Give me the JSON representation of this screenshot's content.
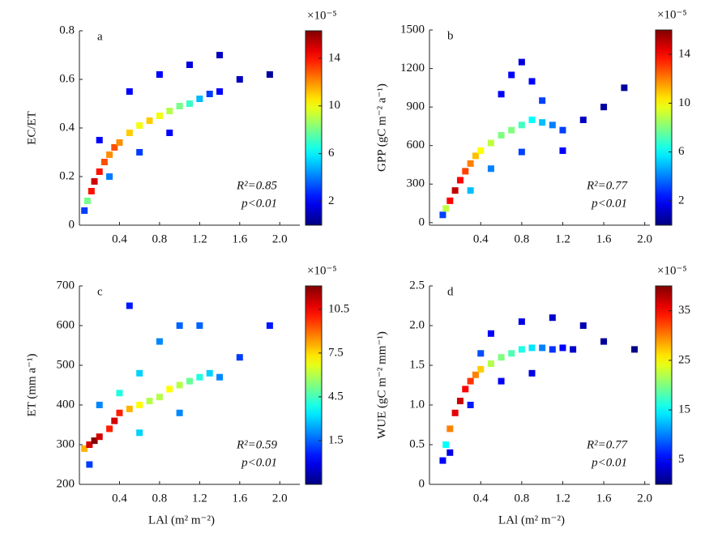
{
  "chart_data": [
    {
      "type": "scatter",
      "label": "a",
      "ylabel": "EC/ET",
      "annotation": "R²=0.85",
      "annotation2": "p<0.01",
      "colorbar_label": "×10⁻⁵",
      "xlim": [
        0,
        2.2
      ],
      "xticks": [
        0.4,
        0.8,
        1.2,
        1.6,
        {
          "value": 2.0,
          "label": "2.0"
        }
      ],
      "ylim": [
        0,
        0.8
      ],
      "yticks": [
        0,
        0.2,
        0.4,
        0.6,
        0.8
      ],
      "clim": [
        0,
        16.3
      ],
      "cticks": [
        2,
        6,
        10,
        14
      ],
      "x": [
        0.05,
        0.08,
        0.12,
        0.15,
        0.2,
        0.25,
        0.3,
        0.35,
        0.4,
        0.5,
        0.6,
        0.7,
        0.8,
        0.9,
        1.0,
        1.1,
        1.2,
        1.3,
        1.4,
        0.3,
        0.6,
        0.9,
        0.5,
        0.8,
        1.1,
        1.4,
        1.6,
        0.2,
        1.9
      ],
      "values": [
        0.06,
        0.1,
        0.14,
        0.18,
        0.22,
        0.26,
        0.29,
        0.32,
        0.34,
        0.38,
        0.41,
        0.43,
        0.45,
        0.47,
        0.49,
        0.5,
        0.52,
        0.54,
        0.55,
        0.2,
        0.3,
        0.38,
        0.55,
        0.62,
        0.66,
        0.7,
        0.6,
        0.35,
        0.62
      ],
      "density": [
        3,
        8,
        14,
        15,
        14,
        13,
        12,
        13,
        12,
        11,
        10,
        11,
        10,
        9,
        8,
        7,
        5,
        3,
        2,
        4,
        3,
        2,
        2,
        2,
        1.5,
        1,
        1,
        2,
        0.5
      ]
    },
    {
      "type": "scatter",
      "label": "b",
      "ylabel": "GPP (gC m⁻² a⁻¹)",
      "annotation": "R²=0.77",
      "annotation2": "p<0.01",
      "colorbar_label": "×10⁻⁵",
      "xlim": [
        -0.1,
        2.05
      ],
      "xticks": [
        0.4,
        0.8,
        1.2,
        1.6,
        {
          "value": 2.0,
          "label": "2.0"
        }
      ],
      "ylim": [
        -20,
        1500
      ],
      "yticks": [
        0,
        300,
        600,
        900,
        1200,
        1500
      ],
      "clim": [
        0,
        16
      ],
      "cticks": [
        2,
        6,
        10,
        14
      ],
      "x": [
        0.03,
        0.06,
        0.1,
        0.15,
        0.2,
        0.25,
        0.3,
        0.35,
        0.4,
        0.5,
        0.6,
        0.7,
        0.8,
        0.9,
        1.0,
        1.1,
        1.2,
        0.6,
        0.7,
        0.8,
        0.9,
        1.0,
        0.5,
        0.8,
        1.2,
        1.4,
        1.6,
        1.8,
        0.3
      ],
      "values": [
        60,
        110,
        170,
        250,
        330,
        400,
        460,
        520,
        560,
        620,
        680,
        720,
        760,
        800,
        780,
        760,
        720,
        1000,
        1150,
        1250,
        1100,
        950,
        420,
        550,
        560,
        800,
        900,
        1050,
        250
      ],
      "density": [
        3,
        9,
        14,
        15,
        14,
        13,
        12,
        11,
        10,
        9,
        8,
        8,
        7,
        6,
        5,
        4,
        3,
        2,
        2,
        1.5,
        2,
        3,
        4,
        3,
        2,
        1,
        0.5,
        0.5,
        5
      ]
    },
    {
      "type": "scatter",
      "label": "c",
      "ylabel": "ET (mm a⁻¹)",
      "xlabel": "LAl (m² m⁻²)",
      "annotation": "R²=0.59",
      "annotation2": "p<0.01",
      "colorbar_label": "×10⁻⁵",
      "xlim": [
        0,
        2.2
      ],
      "xticks": [
        0.4,
        0.8,
        1.2,
        1.6,
        {
          "value": 2.0,
          "label": "2.0"
        }
      ],
      "ylim": [
        200,
        700
      ],
      "yticks": [
        200,
        300,
        400,
        500,
        600,
        700
      ],
      "clim": [
        -1.5,
        12.1
      ],
      "cticks": [
        1.5,
        4.5,
        7.5,
        10.5
      ],
      "x": [
        0.05,
        0.1,
        0.15,
        0.2,
        0.3,
        0.35,
        0.4,
        0.5,
        0.6,
        0.7,
        0.8,
        0.9,
        1.0,
        1.1,
        1.2,
        1.3,
        1.4,
        0.4,
        0.6,
        0.8,
        1.0,
        1.2,
        0.6,
        1.0,
        0.1,
        1.6,
        1.9,
        0.5,
        0.2
      ],
      "values": [
        290,
        300,
        310,
        320,
        340,
        360,
        380,
        390,
        400,
        410,
        420,
        440,
        450,
        460,
        470,
        480,
        470,
        430,
        480,
        560,
        600,
        600,
        330,
        380,
        250,
        520,
        600,
        650,
        400
      ],
      "density": [
        8,
        11,
        12,
        11,
        10,
        11,
        10,
        8,
        7,
        6,
        6,
        7,
        6,
        5,
        4,
        3,
        2,
        4,
        3,
        2,
        1.5,
        1.5,
        3,
        2,
        1,
        1,
        0.5,
        0.5,
        2
      ]
    },
    {
      "type": "scatter",
      "label": "d",
      "ylabel": "WUE (gC m⁻² mm⁻¹)",
      "xlabel": "LAl (m² m⁻²)",
      "annotation": "R²=0.77",
      "annotation2": "p<0.01",
      "colorbar_label": "×10⁻⁵",
      "xlim": [
        -0.1,
        2.05
      ],
      "xticks": [
        0.4,
        0.8,
        1.2,
        1.6,
        {
          "value": 2.0,
          "label": "2.0"
        }
      ],
      "ylim": [
        0,
        2.5
      ],
      "yticks": [
        0,
        {
          "value": 0.5,
          "label": "0.5"
        },
        {
          "value": 1.0,
          "label": "1.0"
        },
        {
          "value": 1.5,
          "label": "1.5"
        },
        {
          "value": 2.0,
          "label": "2.0"
        },
        {
          "value": 2.5,
          "label": "2.5"
        }
      ],
      "clim": [
        0,
        40
      ],
      "cticks": [
        5,
        15,
        25,
        35
      ],
      "x": [
        0.03,
        0.06,
        0.1,
        0.15,
        0.2,
        0.25,
        0.3,
        0.35,
        0.4,
        0.5,
        0.6,
        0.7,
        0.8,
        0.9,
        1.0,
        1.1,
        1.2,
        1.3,
        0.5,
        0.8,
        1.1,
        1.4,
        0.3,
        0.6,
        0.9,
        0.1,
        1.6,
        1.9,
        0.4
      ],
      "values": [
        0.3,
        0.5,
        0.7,
        0.9,
        1.05,
        1.2,
        1.3,
        1.38,
        1.45,
        1.52,
        1.6,
        1.65,
        1.7,
        1.72,
        1.72,
        1.7,
        1.72,
        1.7,
        1.9,
        2.05,
        2.1,
        2.0,
        1.0,
        1.3,
        1.4,
        0.4,
        1.8,
        1.7,
        1.65
      ],
      "density": [
        5,
        15,
        30,
        36,
        37,
        35,
        33,
        30,
        27,
        22,
        20,
        18,
        16,
        14,
        10,
        7,
        5,
        3,
        5,
        4,
        3,
        2,
        6,
        5,
        4,
        4,
        1,
        0.5,
        8
      ]
    }
  ]
}
